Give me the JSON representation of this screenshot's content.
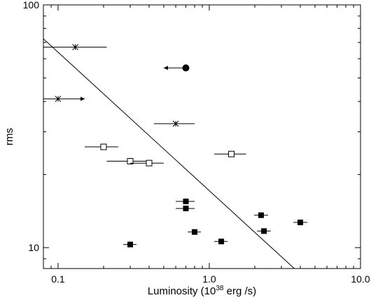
{
  "chart_data": {
    "type": "scatter",
    "xscale": "log",
    "yscale": "log",
    "xlim": [
      0.08,
      10.0
    ],
    "ylim": [
      8.2,
      100
    ],
    "xticks": [
      {
        "value": 0.1,
        "label": "0.1"
      },
      {
        "value": 1.0,
        "label": "1.0"
      },
      {
        "value": 10.0,
        "label": "10.0"
      }
    ],
    "yticks": [
      {
        "value": 10,
        "label": "10"
      },
      {
        "value": 100,
        "label": "100"
      }
    ],
    "xlabel": {
      "pre": "Luminosity (10",
      "sup": "38",
      "post": " erg /s)"
    },
    "ylabel": "rms",
    "grid": false,
    "series": [
      {
        "marker": "filled-square",
        "points": [
          {
            "x": 0.3,
            "y": 10.3,
            "xerr": [
              0.27,
              0.33
            ]
          },
          {
            "x": 0.7,
            "y": 15.5,
            "xerr": [
              0.6,
              0.8
            ]
          },
          {
            "x": 0.7,
            "y": 14.5,
            "xerr": [
              0.6,
              0.8
            ]
          },
          {
            "x": 0.8,
            "y": 11.6,
            "xerr": [
              0.72,
              0.88
            ]
          },
          {
            "x": 1.2,
            "y": 10.6,
            "xerr": [
              1.08,
              1.32
            ]
          },
          {
            "x": 2.2,
            "y": 13.6,
            "xerr": [
              1.98,
              2.45
            ]
          },
          {
            "x": 2.3,
            "y": 11.7,
            "xerr": [
              2.07,
              2.55
            ]
          },
          {
            "x": 4.0,
            "y": 12.7,
            "xerr": [
              3.6,
              4.45
            ]
          }
        ]
      },
      {
        "marker": "open-square",
        "points": [
          {
            "x": 0.2,
            "y": 26.0,
            "xerr": [
              0.15,
              0.25
            ]
          },
          {
            "x": 0.3,
            "y": 22.7,
            "xerr": [
              0.21,
              0.4
            ]
          },
          {
            "x": 0.4,
            "y": 22.3,
            "xerr": [
              0.3,
              0.5
            ]
          },
          {
            "x": 1.4,
            "y": 24.3,
            "xerr": [
              1.08,
              1.75
            ]
          }
        ]
      },
      {
        "marker": "star",
        "points": [
          {
            "x": 0.13,
            "y": 67.0,
            "xerr": [
              0.08,
              0.21
            ]
          },
          {
            "x": 0.6,
            "y": 32.4,
            "xerr": [
              0.43,
              0.8
            ]
          },
          {
            "x": 0.1,
            "y": 41.0,
            "limit": "lower",
            "arrow_to": 0.15,
            "xerr": [
              0.08,
              0.1
            ]
          }
        ]
      },
      {
        "marker": "filled-circle",
        "points": [
          {
            "x": 0.7,
            "y": 55.0,
            "limit": "upper",
            "arrow_to": 0.5
          }
        ]
      }
    ],
    "fit_line": {
      "x": [
        0.08,
        3.65
      ],
      "y": [
        72.5,
        8.2
      ]
    }
  }
}
